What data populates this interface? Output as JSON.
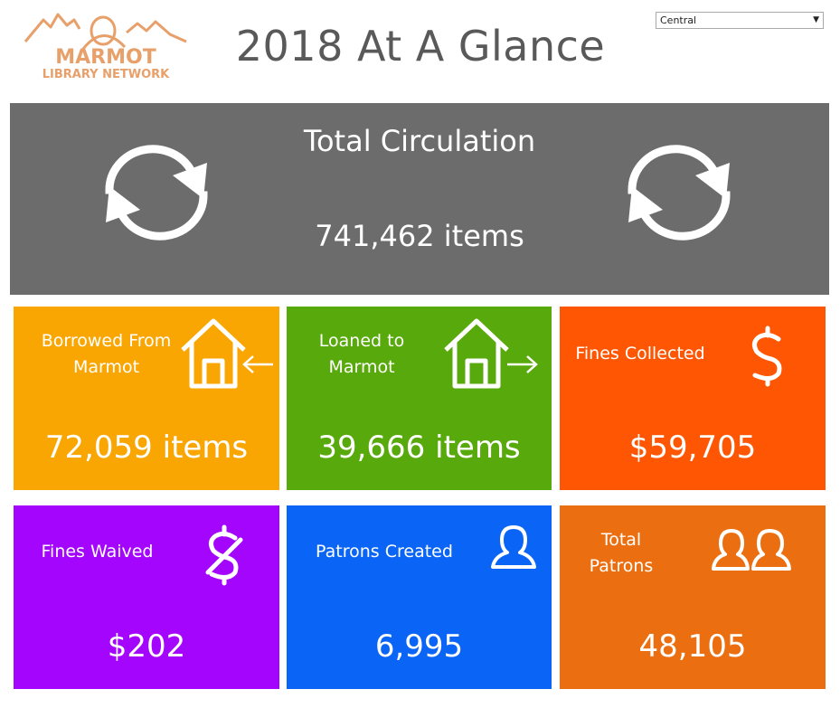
{
  "header": {
    "title": "2018 At A Glance",
    "logo_line1": "MARMOT",
    "logo_line2": "LIBRARY NETWORK",
    "branch_select": {
      "value": "Central"
    }
  },
  "colors": {
    "circulation": "#6c6c6c",
    "borrowed": "#f9a602",
    "loaned": "#58a90b",
    "fines_collected": "#fe5602",
    "fines_waived": "#a305fd",
    "patrons_created": "#0a64f5",
    "total_patrons": "#eb6f10",
    "logo": "#e8a06a",
    "title_text": "#595959"
  },
  "tiles": {
    "circulation": {
      "label": "Total Circulation",
      "value": "741,462 items",
      "icon": "refresh-icon"
    },
    "borrowed": {
      "label_line1": "Borrowed From",
      "label_line2": "Marmot",
      "value": "72,059 items",
      "icon": "house-arrow-in-icon"
    },
    "loaned": {
      "label_line1": "Loaned to",
      "label_line2": "Marmot",
      "value": "39,666 items",
      "icon": "house-arrow-out-icon"
    },
    "fines_collected": {
      "label": "Fines Collected",
      "value": "$59,705",
      "icon": "dollar-icon"
    },
    "fines_waived": {
      "label": "Fines Waived",
      "value": "$202",
      "icon": "dollar-struck-icon"
    },
    "patrons_created": {
      "label": "Patrons Created",
      "value": "6,995",
      "icon": "person-icon"
    },
    "total_patrons": {
      "label_line1": "Total",
      "label_line2": "Patrons",
      "value": "48,105",
      "icon": "people-icon"
    }
  }
}
